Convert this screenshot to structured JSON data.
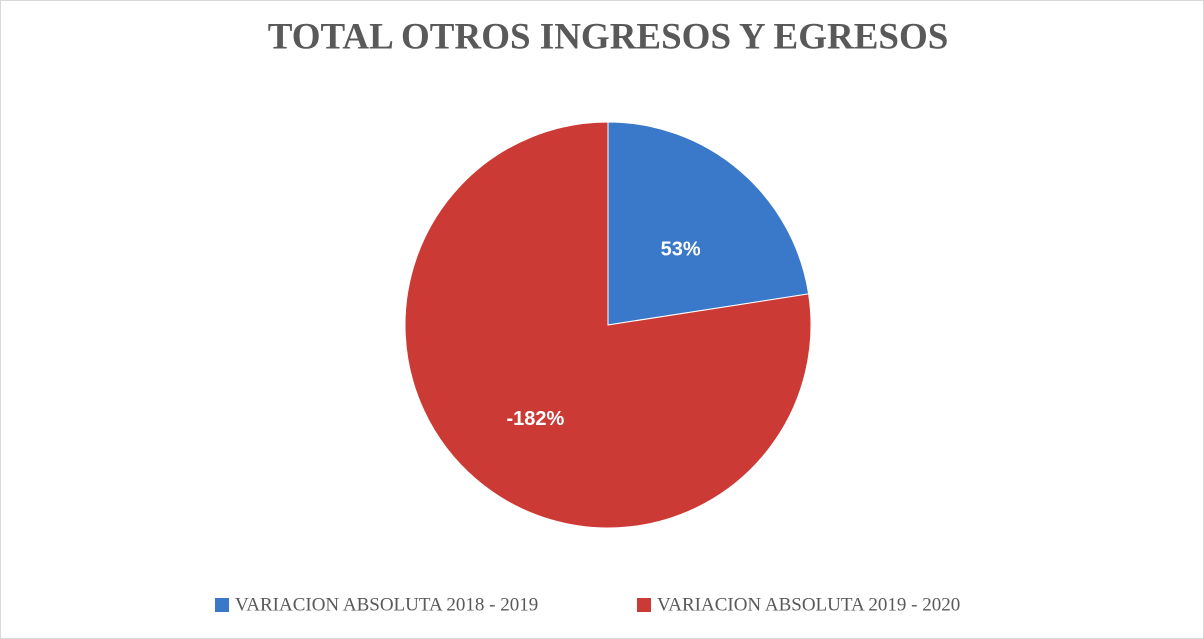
{
  "chart_data": {
    "type": "pie",
    "title": "TOTAL OTROS INGRESOS Y EGRESOS",
    "categories": [
      "VARIACION ABSOLUTA 2018 - 2019",
      "VARIACION ABSOLUTA 2019 - 2020"
    ],
    "values": [
      53,
      -182
    ],
    "value_labels": [
      "53%",
      "-182%"
    ],
    "colors": [
      "#3a78c9",
      "#cc3a36"
    ],
    "legend": "bottom"
  }
}
